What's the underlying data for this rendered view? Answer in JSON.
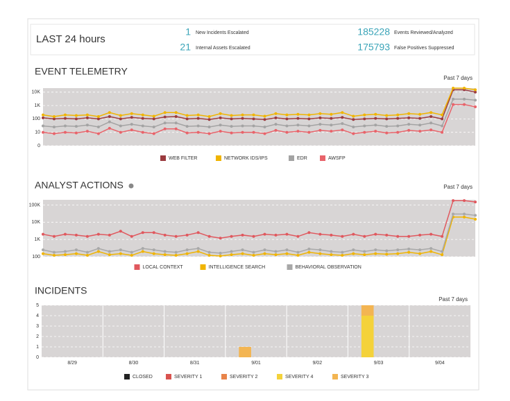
{
  "summary": {
    "title": "LAST 24 hours",
    "items": [
      {
        "value": "1",
        "label": "New Incidents Escalated"
      },
      {
        "value": "21",
        "label": "Internal Assets Escalated"
      },
      {
        "value": "185228",
        "label": "Events Reviewed/Analyzed"
      },
      {
        "value": "175793",
        "label": "False Positives Suppressed"
      }
    ]
  },
  "chart_data": [
    {
      "type": "line",
      "title": "EVENT TELEMETRY",
      "subtitle": "Past 7 days",
      "log": true,
      "ylim": [
        0,
        20000
      ],
      "yticks": [
        0,
        10,
        100,
        {
          "value": 1000,
          "label": "1K"
        },
        {
          "value": 10000,
          "label": "10K"
        }
      ],
      "grid": true,
      "series": [
        {
          "name": "WEB FILTER",
          "color": "#9b3b3f",
          "values": [
            120,
            100,
            110,
            100,
            120,
            100,
            150,
            100,
            130,
            110,
            100,
            140,
            150,
            100,
            110,
            90,
            120,
            100,
            110,
            100,
            90,
            120,
            100,
            110,
            100,
            120,
            110,
            130,
            90,
            100,
            110,
            100,
            110,
            120,
            110,
            150,
            100,
            15000,
            15000,
            10000
          ]
        },
        {
          "name": "NETWORK IDS/IPS",
          "color": "#f0b400",
          "values": [
            200,
            150,
            200,
            180,
            200,
            150,
            300,
            180,
            250,
            200,
            160,
            300,
            300,
            180,
            200,
            150,
            250,
            180,
            200,
            200,
            160,
            250,
            200,
            220,
            200,
            250,
            220,
            300,
            160,
            200,
            220,
            180,
            200,
            250,
            220,
            300,
            200,
            20000,
            20000,
            15000
          ]
        },
        {
          "name": "EDR",
          "color": "#a3a3a3",
          "values": [
            30,
            25,
            30,
            28,
            35,
            25,
            60,
            30,
            40,
            30,
            25,
            50,
            50,
            28,
            30,
            25,
            35,
            28,
            30,
            30,
            25,
            40,
            30,
            35,
            30,
            40,
            35,
            45,
            25,
            30,
            35,
            28,
            30,
            40,
            35,
            50,
            30,
            3000,
            3000,
            2500
          ]
        },
        {
          "name": "AWSFP",
          "color": "#e8636a",
          "values": [
            10,
            8,
            10,
            9,
            12,
            8,
            20,
            10,
            15,
            10,
            8,
            18,
            18,
            9,
            10,
            8,
            12,
            9,
            10,
            10,
            8,
            14,
            10,
            12,
            10,
            14,
            12,
            15,
            8,
            10,
            12,
            9,
            10,
            14,
            12,
            15,
            10,
            1200,
            1200,
            800
          ]
        }
      ]
    },
    {
      "type": "line",
      "title": "ANALYST ACTIONS",
      "subtitle": "Past 7 days",
      "log": true,
      "ylim": [
        100,
        200000
      ],
      "yticks": [
        100,
        {
          "value": 1000,
          "label": "1K"
        },
        {
          "value": 10000,
          "label": "10K"
        },
        {
          "value": 100000,
          "label": "100K"
        }
      ],
      "grid": true,
      "series": [
        {
          "name": "LOCAL CONTEXT",
          "color": "#e0585e",
          "values": [
            2000,
            1500,
            2000,
            1800,
            1500,
            2000,
            1800,
            3000,
            1500,
            2500,
            2500,
            1800,
            1500,
            1800,
            2500,
            1500,
            1200,
            1500,
            1800,
            1500,
            2000,
            1800,
            2000,
            1500,
            2500,
            2000,
            1800,
            1500,
            2000,
            1500,
            2000,
            1800,
            1500,
            1500,
            1800,
            2000,
            1500,
            180000,
            180000,
            150000
          ]
        },
        {
          "name": "INTELLIGENCE SEARCH",
          "color": "#f0b400",
          "values": [
            150,
            120,
            130,
            150,
            120,
            200,
            130,
            150,
            120,
            200,
            150,
            130,
            120,
            150,
            200,
            120,
            110,
            130,
            150,
            120,
            150,
            130,
            150,
            120,
            180,
            150,
            130,
            120,
            150,
            130,
            150,
            140,
            150,
            180,
            150,
            200,
            130,
            20000,
            20000,
            15000
          ]
        },
        {
          "name": "BEHAVIORAL OBSERVATION",
          "color": "#a8a8a8",
          "values": [
            250,
            180,
            200,
            250,
            180,
            300,
            200,
            250,
            180,
            300,
            250,
            200,
            180,
            250,
            300,
            180,
            160,
            200,
            250,
            180,
            250,
            200,
            250,
            180,
            280,
            250,
            200,
            180,
            250,
            200,
            250,
            220,
            250,
            280,
            250,
            300,
            200,
            30000,
            30000,
            25000
          ]
        }
      ]
    },
    {
      "type": "stacked_bar",
      "title": "INCIDENTS",
      "subtitle": "Past 7 days",
      "categories": [
        "8/29",
        "8/30",
        "8/31",
        "9/01",
        "9/02",
        "9/03",
        "9/04"
      ],
      "ylim": [
        0,
        5
      ],
      "yticks": [
        0,
        1,
        2,
        3,
        4,
        5
      ],
      "grid": true,
      "series": [
        {
          "name": "CLOSED",
          "color": "#222222",
          "values": [
            0,
            0,
            0,
            0,
            0,
            0,
            0
          ]
        },
        {
          "name": "SEVERITY 1",
          "color": "#d9534f",
          "values": [
            0,
            0,
            0,
            0,
            0,
            0,
            0
          ]
        },
        {
          "name": "SEVERITY 2",
          "color": "#e8844a",
          "values": [
            0,
            0,
            0,
            0,
            0,
            0,
            0
          ]
        },
        {
          "name": "SEVERITY 4",
          "color": "#f4d23a",
          "values": [
            0,
            0,
            0,
            0,
            0,
            4,
            0
          ]
        },
        {
          "name": "SEVERITY 3",
          "color": "#f3b552",
          "values": [
            0,
            0,
            0,
            1,
            0,
            1,
            0
          ]
        }
      ]
    }
  ]
}
